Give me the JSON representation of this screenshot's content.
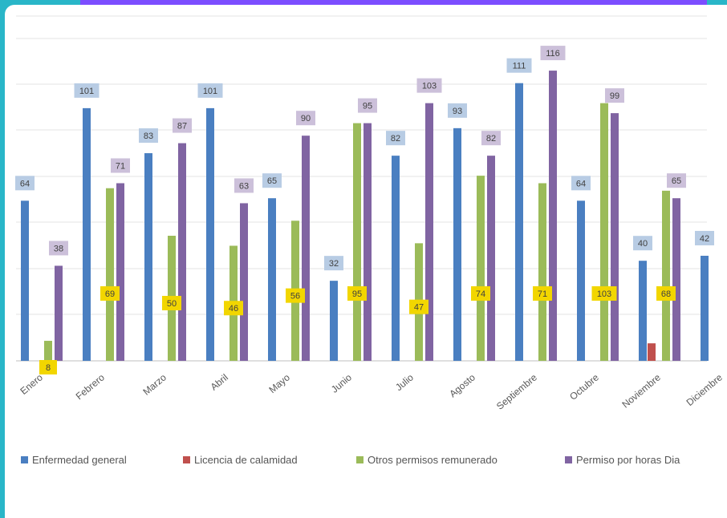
{
  "chart_data": {
    "type": "bar",
    "title": "",
    "xlabel": "",
    "ylabel": "",
    "ylim": [
      0,
      150
    ],
    "grid": true,
    "legend_position": "bottom",
    "categories": [
      "Enero",
      "Febrero",
      "Marzo",
      "Abril",
      "Mayo",
      "Junio",
      "Julio",
      "Agosto",
      "Septiembre",
      "Octubre",
      "Noviembre",
      "Diciembre"
    ],
    "series": [
      {
        "name": "Enfermedad general",
        "color": "#4a7fc1",
        "label_bg": "#b8cce4",
        "values": [
          64,
          101,
          83,
          101,
          65,
          32,
          82,
          93,
          111,
          64,
          40,
          42
        ]
      },
      {
        "name": "Licencia de calamidad",
        "color": "#c0504d",
        "label_bg": "#e6b9b8",
        "values": [
          0,
          0,
          0,
          0,
          0,
          0,
          0,
          0,
          0,
          0,
          7,
          0
        ]
      },
      {
        "name": "Otros permisos remunerado",
        "color": "#9bbb59",
        "label_bg": "#f2d600",
        "values": [
          8,
          69,
          50,
          46,
          56,
          95,
          47,
          74,
          71,
          103,
          68,
          null
        ]
      },
      {
        "name": "Permiso por horas Dia",
        "color": "#8064a2",
        "label_bg": "#ccc0da",
        "values": [
          38,
          71,
          87,
          63,
          90,
          95,
          103,
          82,
          116,
          99,
          65,
          null
        ]
      }
    ]
  }
}
